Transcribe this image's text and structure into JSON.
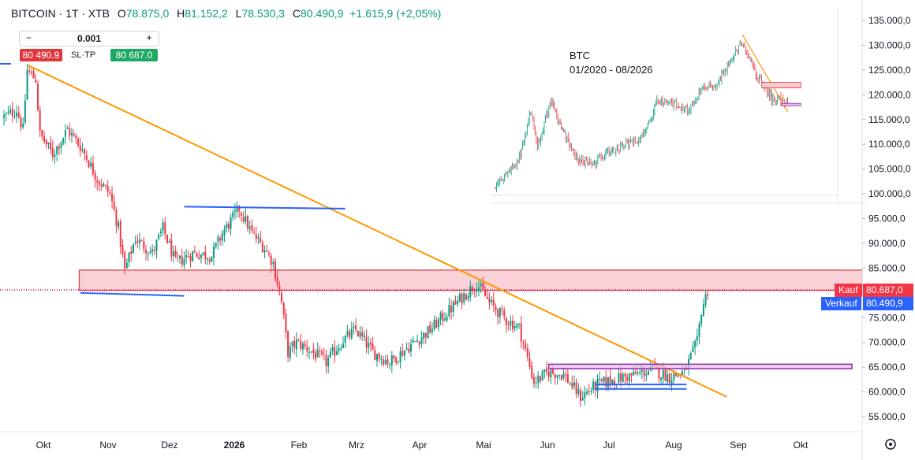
{
  "header": {
    "symbol": "BITCOIN · 1T · XTB",
    "open_label": "O",
    "open": "78.875,0",
    "high_label": "H",
    "high": "81.152,2",
    "low_label": "L",
    "low": "78.530,3",
    "close_label": "C",
    "close": "80.490,9",
    "change": "+1.615,9 (+2,05%)"
  },
  "order_panel": {
    "minus": "−",
    "plus": "+",
    "quantity": "0.001",
    "sell_price": "80 490.9",
    "sl_tp": "SL·TP",
    "buy_price": "80 687.0"
  },
  "price_tags": {
    "buy_label": "Kauf",
    "buy_value": "80.687,0",
    "sell_label": "Verkauf",
    "sell_value": "80.490,9"
  },
  "colors": {
    "up": "#089981",
    "down": "#f23645",
    "trend": "#ff9800",
    "zone_fill": "#f8c9cf",
    "zone_border": "#e0373d",
    "support": "#2962ff",
    "box": "#9c27b0",
    "sell": "#2962ff",
    "buy": "#f23645"
  },
  "inset": {
    "title": "BTC",
    "period": "01/2020 - 08/2026"
  },
  "chart_data": {
    "type": "candlestick",
    "x_axis": {
      "tick_labels": [
        "Okt",
        "Nov",
        "Dez",
        "2026",
        "Feb",
        "Mrz",
        "Apr",
        "Mai",
        "Jun",
        "Jul",
        "Aug",
        "Sep",
        "Okt"
      ],
      "start": "2025-09-25",
      "end": "2026-10-30"
    },
    "y_axis": {
      "range": [
        52000,
        140000
      ],
      "tick_labels": [
        "55.000,0",
        "60.000,0",
        "65.000,0",
        "70.000,0",
        "75.000,0",
        "80.000,0",
        "85.000,0",
        "90.000,0",
        "95.000,0",
        "100.000,0",
        "105.000,0",
        "110.000,0",
        "115.000,0",
        "120.000,0",
        "125.000,0",
        "130.000,0",
        "135.000,0"
      ],
      "ticks": [
        55000,
        60000,
        65000,
        70000,
        75000,
        80000,
        85000,
        90000,
        95000,
        100000,
        105000,
        110000,
        115000,
        120000,
        125000,
        130000,
        135000
      ]
    },
    "current_buy": 80687.0,
    "current_sell": 80490.9,
    "trend_line": {
      "start": [
        "2025-10-06",
        126000
      ],
      "end": [
        "2026-09-01",
        59000
      ]
    },
    "zone": {
      "start": "2025-11-01",
      "end": "2026-10-30",
      "low": 80500,
      "high": 84600
    },
    "support_lines": [
      {
        "start": [
          "2025-10-31",
          80000
        ],
        "end": [
          "2025-12-19",
          79400
        ]
      },
      {
        "start": [
          "2025-12-19",
          97400
        ],
        "end": [
          "2026-03-05",
          97000
        ]
      },
      {
        "start": [
          "2026-07-01",
          61500
        ],
        "end": [
          "2026-08-13",
          61500
        ]
      },
      {
        "start": [
          "2026-07-01",
          60600
        ],
        "end": [
          "2026-08-13",
          60600
        ]
      }
    ],
    "box": {
      "start": "2026-06-09",
      "end": "2026-10-30",
      "low": 64700,
      "high": 65600
    },
    "price_path": [
      [
        "2025-09-25",
        115500
      ],
      [
        "2025-10-01",
        117000
      ],
      [
        "2025-10-04",
        113000
      ],
      [
        "2025-10-06",
        125000
      ],
      [
        "2025-10-10",
        123000
      ],
      [
        "2025-10-12",
        112000
      ],
      [
        "2025-10-18",
        108000
      ],
      [
        "2025-10-25",
        113000
      ],
      [
        "2025-11-01",
        109000
      ],
      [
        "2025-11-08",
        103000
      ],
      [
        "2025-11-14",
        100000
      ],
      [
        "2025-11-18",
        93000
      ],
      [
        "2025-11-21",
        84500
      ],
      [
        "2025-11-26",
        91000
      ],
      [
        "2025-12-04",
        88000
      ],
      [
        "2025-12-09",
        93000
      ],
      [
        "2025-12-15",
        86000
      ],
      [
        "2025-12-23",
        88000
      ],
      [
        "2026-01-01",
        87500
      ],
      [
        "2026-01-06",
        92000
      ],
      [
        "2026-01-14",
        97000
      ],
      [
        "2026-01-20",
        92000
      ],
      [
        "2026-01-26",
        89000
      ],
      [
        "2026-01-30",
        86000
      ],
      [
        "2026-02-03",
        78000
      ],
      [
        "2026-02-06",
        68000
      ],
      [
        "2026-02-10",
        70000
      ],
      [
        "2026-02-16",
        68500
      ],
      [
        "2026-02-24",
        66000
      ],
      [
        "2026-03-04",
        70500
      ],
      [
        "2026-03-10",
        72500
      ],
      [
        "2026-03-18",
        68000
      ],
      [
        "2026-03-26",
        66000
      ],
      [
        "2026-04-05",
        69500
      ],
      [
        "2026-04-14",
        72500
      ],
      [
        "2026-04-22",
        76000
      ],
      [
        "2026-04-30",
        79500
      ],
      [
        "2026-05-06",
        82000
      ],
      [
        "2026-05-12",
        78000
      ],
      [
        "2026-05-20",
        74500
      ],
      [
        "2026-05-26",
        73000
      ],
      [
        "2026-06-02",
        62000
      ],
      [
        "2026-06-09",
        64000
      ],
      [
        "2026-06-16",
        63500
      ],
      [
        "2026-06-24",
        59000
      ],
      [
        "2026-07-02",
        61500
      ],
      [
        "2026-07-10",
        62500
      ],
      [
        "2026-07-20",
        63500
      ],
      [
        "2026-07-28",
        64500
      ],
      [
        "2026-08-05",
        63000
      ],
      [
        "2026-08-12",
        64000
      ],
      [
        "2026-08-18",
        70000
      ],
      [
        "2026-08-20",
        76500
      ],
      [
        "2026-08-23",
        80500
      ]
    ]
  }
}
